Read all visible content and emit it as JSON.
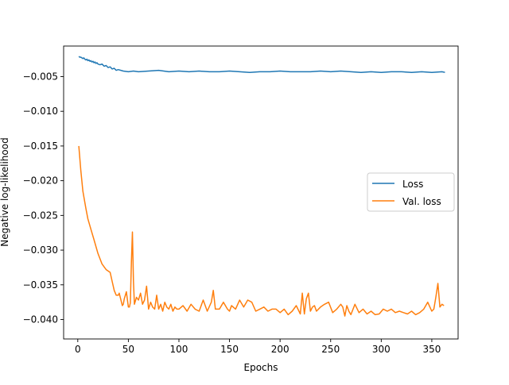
{
  "chart_data": {
    "type": "line",
    "xlabel": "Epochs",
    "ylabel": "Negative log-likelihood",
    "xlim": [
      -14,
      376
    ],
    "ylim": [
      -0.0428,
      -0.0006
    ],
    "xticks": [
      0,
      50,
      100,
      150,
      200,
      250,
      300,
      350
    ],
    "yticks": [
      -0.005,
      -0.01,
      -0.015,
      -0.02,
      -0.025,
      -0.03,
      -0.035,
      -0.04
    ],
    "legend_position": "center-right",
    "grid": false,
    "series": [
      {
        "name": "Loss",
        "color": "#1f77b4",
        "x": [
          1,
          2,
          3,
          4,
          5,
          6,
          7,
          8,
          9,
          10,
          11,
          12,
          13,
          14,
          15,
          16,
          17,
          18,
          19,
          20,
          22,
          24,
          26,
          28,
          30,
          32,
          34,
          36,
          38,
          40,
          45,
          50,
          55,
          60,
          70,
          80,
          90,
          100,
          110,
          120,
          130,
          140,
          150,
          160,
          170,
          180,
          190,
          200,
          210,
          220,
          230,
          240,
          250,
          260,
          270,
          280,
          290,
          300,
          310,
          320,
          330,
          340,
          350,
          360,
          363
        ],
        "values": [
          -0.0021,
          -0.0022,
          -0.0022,
          -0.0023,
          -0.0024,
          -0.0023,
          -0.0025,
          -0.0026,
          -0.0025,
          -0.0027,
          -0.0026,
          -0.0028,
          -0.0027,
          -0.0029,
          -0.0028,
          -0.003,
          -0.0029,
          -0.0031,
          -0.003,
          -0.0032,
          -0.0033,
          -0.0032,
          -0.0035,
          -0.0034,
          -0.0037,
          -0.0036,
          -0.0039,
          -0.0038,
          -0.0041,
          -0.004,
          -0.0042,
          -0.0043,
          -0.0042,
          -0.0043,
          -0.0042,
          -0.0041,
          -0.0043,
          -0.0042,
          -0.0043,
          -0.0042,
          -0.0043,
          -0.0043,
          -0.0042,
          -0.0043,
          -0.0044,
          -0.0043,
          -0.0043,
          -0.0042,
          -0.0043,
          -0.0043,
          -0.0043,
          -0.0042,
          -0.0043,
          -0.0042,
          -0.0043,
          -0.0044,
          -0.0043,
          -0.0044,
          -0.0043,
          -0.0043,
          -0.0044,
          -0.0043,
          -0.0044,
          -0.0043,
          -0.0044
        ]
      },
      {
        "name": "Val. loss",
        "color": "#ff7f0e",
        "x": [
          1,
          3,
          5,
          8,
          10,
          13,
          16,
          20,
          24,
          28,
          32,
          34,
          36,
          38,
          40,
          41,
          42,
          44,
          45,
          46,
          48,
          50,
          51,
          52,
          53,
          54,
          55,
          56,
          58,
          60,
          62,
          64,
          66,
          68,
          70,
          72,
          74,
          76,
          78,
          80,
          82,
          84,
          86,
          88,
          90,
          92,
          94,
          96,
          98,
          100,
          104,
          108,
          112,
          116,
          120,
          124,
          128,
          132,
          134,
          136,
          140,
          144,
          148,
          150,
          152,
          156,
          160,
          164,
          168,
          172,
          176,
          180,
          184,
          188,
          192,
          196,
          200,
          204,
          208,
          212,
          216,
          220,
          222,
          224,
          226,
          228,
          230,
          232,
          234,
          236,
          240,
          244,
          248,
          252,
          256,
          260,
          262,
          264,
          266,
          268,
          270,
          274,
          278,
          282,
          286,
          290,
          294,
          298,
          302,
          306,
          310,
          314,
          318,
          322,
          326,
          330,
          334,
          338,
          342,
          346,
          350,
          352,
          354,
          356,
          358,
          360,
          362
        ],
        "values": [
          -0.015,
          -0.0185,
          -0.0215,
          -0.024,
          -0.0255,
          -0.027,
          -0.0285,
          -0.0305,
          -0.032,
          -0.0328,
          -0.0332,
          -0.0345,
          -0.0358,
          -0.0365,
          -0.0365,
          -0.0362,
          -0.0368,
          -0.038,
          -0.0378,
          -0.037,
          -0.036,
          -0.0382,
          -0.0382,
          -0.0376,
          -0.0318,
          -0.0274,
          -0.0345,
          -0.0378,
          -0.0368,
          -0.0372,
          -0.0362,
          -0.0378,
          -0.0372,
          -0.0352,
          -0.0385,
          -0.0375,
          -0.0382,
          -0.0385,
          -0.0365,
          -0.0385,
          -0.0378,
          -0.0388,
          -0.0375,
          -0.0382,
          -0.0385,
          -0.0378,
          -0.0388,
          -0.0382,
          -0.0385,
          -0.0385,
          -0.038,
          -0.0388,
          -0.0378,
          -0.0385,
          -0.0388,
          -0.0372,
          -0.0388,
          -0.0375,
          -0.0358,
          -0.0385,
          -0.0385,
          -0.0375,
          -0.0385,
          -0.0388,
          -0.038,
          -0.0385,
          -0.0372,
          -0.0382,
          -0.0372,
          -0.0375,
          -0.0388,
          -0.0385,
          -0.0382,
          -0.0388,
          -0.0385,
          -0.0385,
          -0.039,
          -0.0385,
          -0.0393,
          -0.0388,
          -0.038,
          -0.0392,
          -0.0362,
          -0.0392,
          -0.037,
          -0.0362,
          -0.0388,
          -0.0382,
          -0.038,
          -0.0388,
          -0.0382,
          -0.0378,
          -0.0375,
          -0.039,
          -0.0385,
          -0.0378,
          -0.0382,
          -0.0395,
          -0.038,
          -0.0388,
          -0.0393,
          -0.0378,
          -0.039,
          -0.0385,
          -0.0392,
          -0.0388,
          -0.0393,
          -0.0392,
          -0.0385,
          -0.0388,
          -0.0385,
          -0.039,
          -0.0388,
          -0.039,
          -0.0392,
          -0.0388,
          -0.0393,
          -0.039,
          -0.0385,
          -0.0375,
          -0.0388,
          -0.0385,
          -0.0368,
          -0.0348,
          -0.0382,
          -0.0378,
          -0.038
        ]
      }
    ]
  }
}
